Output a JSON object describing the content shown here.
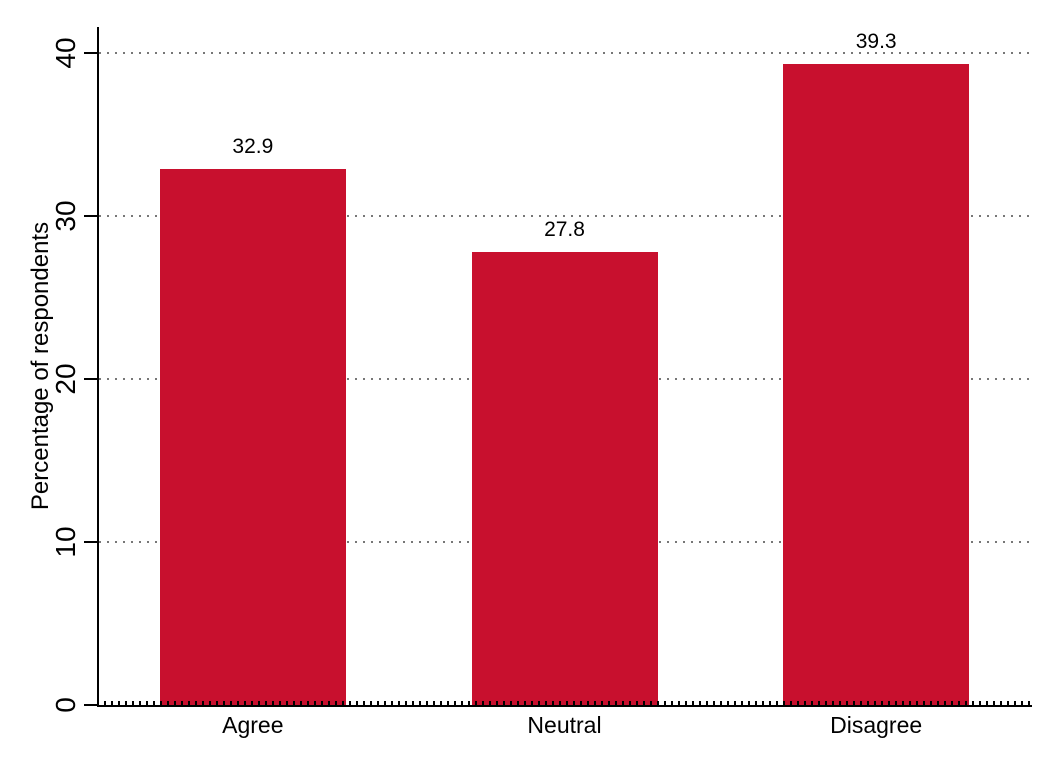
{
  "chart_data": {
    "type": "bar",
    "categories": [
      "Agree",
      "Neutral",
      "Disagree"
    ],
    "values": [
      32.9,
      27.8,
      39.3
    ],
    "value_labels": [
      "32.9",
      "27.8",
      "39.3"
    ],
    "title": "",
    "xlabel": "",
    "ylabel": "Percentage of respondents",
    "ylim": [
      0,
      40
    ],
    "yticks": [
      0,
      10,
      20,
      30,
      40
    ],
    "grid": "horizontal dotted gridlines at 10, 20, 30, 40",
    "legend_position": "none",
    "colors": {
      "bar": "#c8102e",
      "axis": "#000000",
      "grid": "#777777",
      "text": "#000000",
      "background": "#ffffff"
    }
  }
}
